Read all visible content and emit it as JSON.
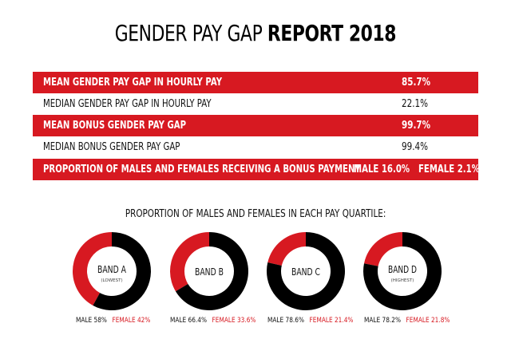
{
  "title": {
    "part1": "GENDER PAY GAP",
    "part2": "REPORT 2018"
  },
  "rows": [
    {
      "label": "MEAN GENDER PAY GAP IN HOURLY PAY",
      "value": "85.7%",
      "style": "red"
    },
    {
      "label": "MEDIAN GENDER PAY GAP IN HOURLY PAY",
      "value": "22.1%",
      "style": "white"
    },
    {
      "label": "MEAN BONUS GENDER PAY GAP",
      "value": "99.7%",
      "style": "red"
    },
    {
      "label": "MEDIAN BONUS GENDER PAY GAP",
      "value": "99.4%",
      "style": "white"
    }
  ],
  "bonus_row": {
    "label": "PROPORTION OF MALES AND FEMALES RECEIVING A BONUS PAYMENT",
    "male_label": "MALE",
    "male_value": "16.0%",
    "female_label": "FEMALE",
    "female_value": "2.1%"
  },
  "quartile_title": "PROPORTION OF MALES AND FEMALES IN EACH PAY QUARTILE:",
  "colors": {
    "male": "#000000",
    "female": "#d71921"
  },
  "chart_data": [
    {
      "type": "pie",
      "band": "BAND A",
      "sub": "(LOWEST)",
      "male": 58,
      "female": 42,
      "male_label": "MALE 58%",
      "female_label": "FEMALE 42%"
    },
    {
      "type": "pie",
      "band": "BAND B",
      "sub": "",
      "male": 66.4,
      "female": 33.6,
      "male_label": "MALE 66.4%",
      "female_label": "FEMALE 33.6%"
    },
    {
      "type": "pie",
      "band": "BAND C",
      "sub": "",
      "male": 78.6,
      "female": 21.4,
      "male_label": "MALE 78.6%",
      "female_label": "FEMALE 21.4%"
    },
    {
      "type": "pie",
      "band": "BAND D",
      "sub": "(HIGHEST)",
      "male": 78.2,
      "female": 21.8,
      "male_label": "MALE 78.2%",
      "female_label": "FEMALE 21.8%"
    }
  ]
}
